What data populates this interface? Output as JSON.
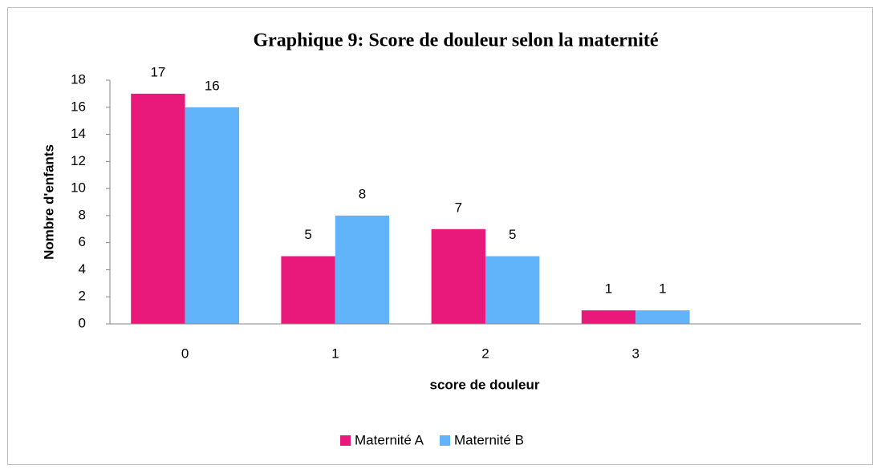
{
  "chart_data": {
    "type": "bar",
    "title": "Graphique 9: Score de douleur selon la maternité",
    "x_label": "score de douleur",
    "y_label": "Nombre d'enfants",
    "categories": [
      "0",
      "1",
      "2",
      "3",
      null
    ],
    "series": [
      {
        "name": "Maternité A",
        "color": "#e8197a",
        "values": [
          17,
          5,
          7,
          1,
          null
        ]
      },
      {
        "name": "Maternité B",
        "color": "#61b4fa",
        "values": [
          16,
          8,
          5,
          1,
          null
        ]
      }
    ],
    "ylim": [
      0,
      18
    ],
    "yticks": [
      0,
      2,
      4,
      6,
      8,
      10,
      12,
      14,
      16,
      18
    ],
    "grid": false,
    "legend": "bottom"
  }
}
